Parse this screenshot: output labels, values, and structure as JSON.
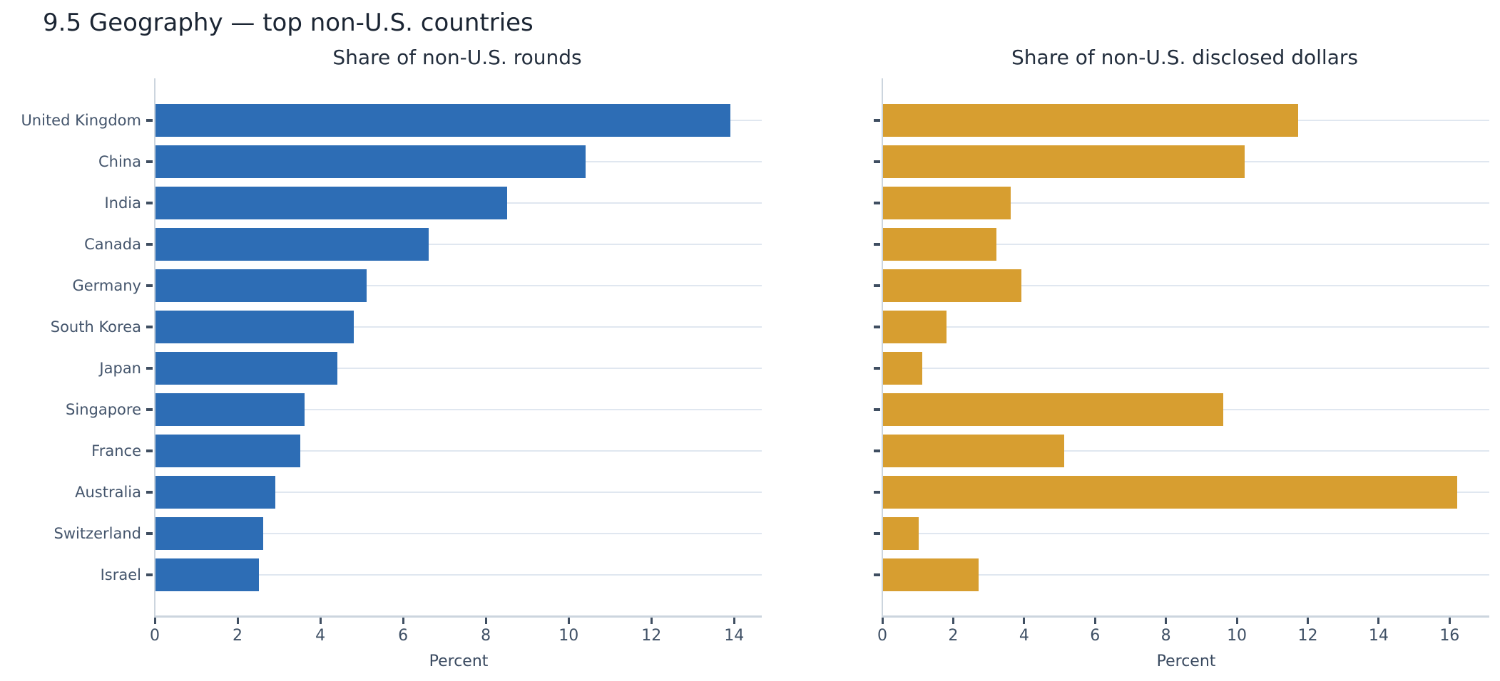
{
  "title": "9.5 Geography — top non-U.S. countries",
  "chart_data": [
    {
      "type": "bar",
      "orientation": "horizontal",
      "title": "Share of non-U.S. rounds",
      "xlabel": "Percent",
      "categories": [
        "United Kingdom",
        "China",
        "India",
        "Canada",
        "Germany",
        "South Korea",
        "Japan",
        "Singapore",
        "France",
        "Australia",
        "Switzerland",
        "Israel"
      ],
      "values": [
        13.9,
        10.4,
        8.5,
        6.6,
        5.1,
        4.8,
        4.4,
        3.6,
        3.5,
        2.9,
        2.6,
        2.5
      ],
      "bar_color": "#2d6db5",
      "xticks": [
        0,
        2,
        4,
        6,
        8,
        10,
        12,
        14
      ],
      "xlim": [
        0,
        14.65
      ],
      "grid": "horizontal-category-lines",
      "legend": "none",
      "show_category_labels": true
    },
    {
      "type": "bar",
      "orientation": "horizontal",
      "title": "Share of non-U.S. disclosed dollars",
      "xlabel": "Percent",
      "categories": [
        "United Kingdom",
        "China",
        "India",
        "Canada",
        "Germany",
        "South Korea",
        "Japan",
        "Singapore",
        "France",
        "Australia",
        "Switzerland",
        "Israel"
      ],
      "values": [
        11.7,
        10.2,
        3.6,
        3.2,
        3.9,
        1.8,
        1.1,
        9.6,
        5.1,
        16.2,
        1.0,
        2.7
      ],
      "bar_color": "#d79e30",
      "xticks": [
        0,
        2,
        4,
        6,
        8,
        10,
        12,
        14,
        16
      ],
      "xlim": [
        0,
        17.1
      ],
      "grid": "horizontal-category-lines",
      "legend": "none",
      "show_category_labels": false
    }
  ]
}
